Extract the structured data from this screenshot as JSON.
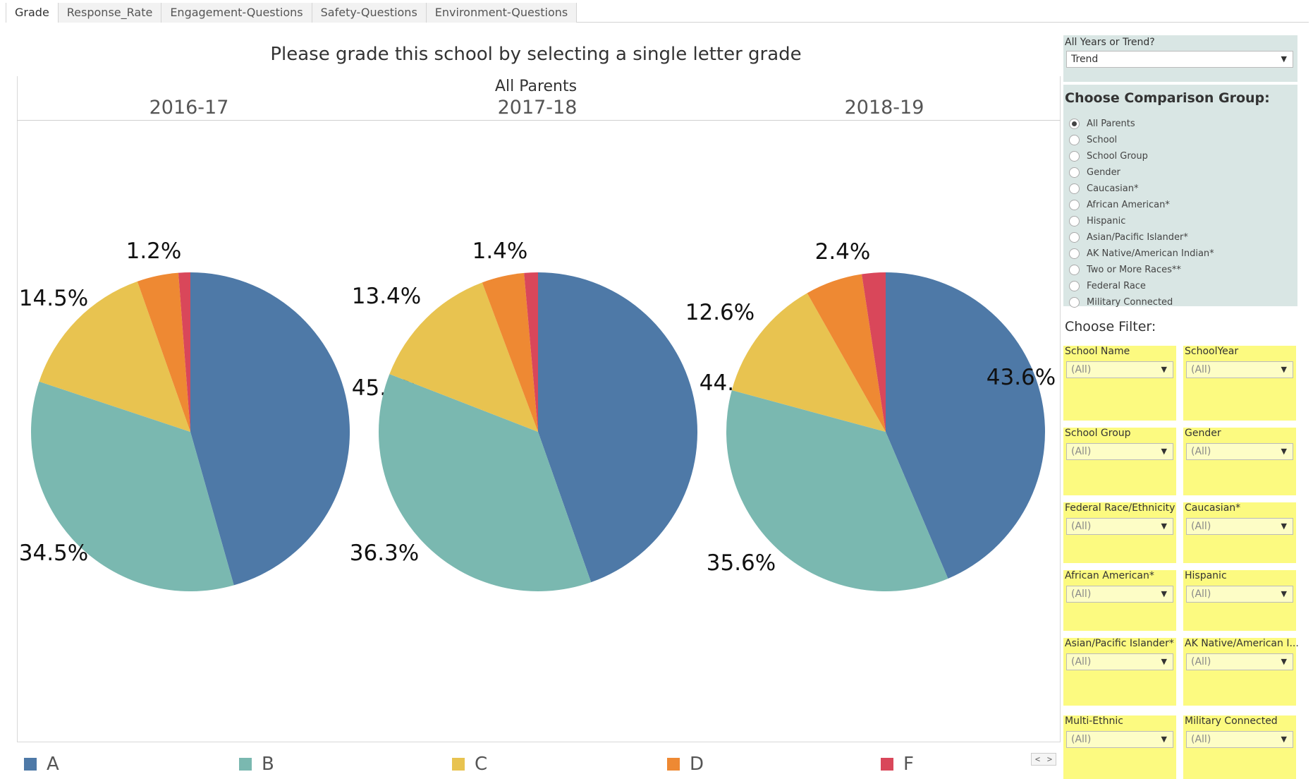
{
  "tabs": [
    "Grade",
    "Response_Rate",
    "Engagement-Questions",
    "Safety-Questions",
    "Environment-Questions"
  ],
  "page_title": "Please grade this school by selecting a single letter grade",
  "comparison_group_label": "All Parents",
  "chart_data": {
    "type": "pie",
    "categories": [
      "A",
      "B",
      "C",
      "D",
      "F"
    ],
    "colors": [
      "#4e79a7",
      "#7ab8b0",
      "#e8c350",
      "#ee8933",
      "#d9475a"
    ],
    "pies": [
      {
        "name": "2016-17",
        "values": [
          45.6,
          34.5,
          14.5,
          4.2,
          1.2
        ],
        "labels": [
          "45.6%",
          "34.5%",
          "14.5%",
          "",
          "1.2%"
        ]
      },
      {
        "name": "2017-18",
        "values": [
          44.6,
          36.3,
          13.4,
          4.3,
          1.4
        ],
        "labels": [
          "44.6%",
          "36.3%",
          "13.4%",
          "",
          "1.4%"
        ]
      },
      {
        "name": "2018-19",
        "values": [
          43.6,
          35.6,
          12.6,
          5.8,
          2.4
        ],
        "labels": [
          "43.6%",
          "35.6%",
          "12.6%",
          "",
          "2.4%"
        ]
      }
    ]
  },
  "legend": [
    "A",
    "B",
    "C",
    "D",
    "F"
  ],
  "years_control": {
    "title": "All Years or Trend?",
    "value": "Trend"
  },
  "comparison": {
    "title": "Choose Comparison Group:",
    "selected": 0,
    "options": [
      "All Parents",
      "School",
      "School Group",
      "Gender",
      "Caucasian*",
      "African American*",
      "Hispanic",
      "Asian/Pacific Islander*",
      "AK Native/American Indian*",
      "Two or More Races**",
      "Federal Race",
      "Military Connected"
    ]
  },
  "filters_heading": "Choose Filter:",
  "filters": [
    {
      "name": "School Name",
      "value": "(All)"
    },
    {
      "name": "SchoolYear",
      "value": "(All)"
    },
    {
      "name": "School Group",
      "value": "(All)"
    },
    {
      "name": "Gender",
      "value": "(All)"
    },
    {
      "name": "Federal Race/Ethnicity",
      "value": "(All)"
    },
    {
      "name": "Caucasian*",
      "value": "(All)"
    },
    {
      "name": "African American*",
      "value": "(All)"
    },
    {
      "name": "Hispanic",
      "value": "(All)"
    },
    {
      "name": "Asian/Pacific Islander*",
      "value": "(All)"
    },
    {
      "name": "AK Native/American I...",
      "value": "(All)"
    },
    {
      "name": "Multi-Ethnic",
      "value": "(All)"
    },
    {
      "name": "Military Connected",
      "value": "(All)"
    }
  ]
}
